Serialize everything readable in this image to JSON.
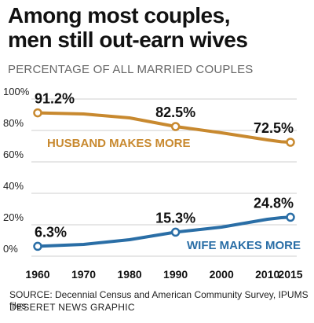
{
  "header": {
    "title_line1": "Among most couples,",
    "title_line2": "men still out-earn wives",
    "subtitle": "PERCENTAGE OF ALL MARRIED COUPLES"
  },
  "footer": {
    "source": "SOURCE: Decennial Census and American Community Survey, IPUMS files",
    "credit": "DESERET NEWS GRAPHIC"
  },
  "colors": {
    "husband": "#c8892f",
    "wife": "#2a6ea6",
    "grid": "#cfcfcf",
    "husband_label": "#c8892f",
    "wife_label": "#2a6ea6"
  },
  "chart_data": {
    "type": "line",
    "xlim": [
      1960,
      2015
    ],
    "ylim": [
      0,
      100
    ],
    "x_ticks": [
      1960,
      1970,
      1980,
      1990,
      2000,
      2010,
      2015
    ],
    "y_ticks": [
      {
        "value": 0,
        "label": "0%"
      },
      {
        "value": 20,
        "label": "20%"
      },
      {
        "value": 40,
        "label": "40%"
      },
      {
        "value": 60,
        "label": "60%"
      },
      {
        "value": 80,
        "label": "80%"
      },
      {
        "value": 100,
        "label": "100%"
      }
    ],
    "grid": true,
    "series": [
      {
        "name": "HUSBAND MAKES MORE",
        "color_key": "husband",
        "points": [
          {
            "x": 1960,
            "y": 91.2
          },
          {
            "x": 1970,
            "y": 90.5
          },
          {
            "x": 1980,
            "y": 88.0
          },
          {
            "x": 1990,
            "y": 82.5
          },
          {
            "x": 2000,
            "y": 78.5
          },
          {
            "x": 2010,
            "y": 74.0
          },
          {
            "x": 2013,
            "y": 72.8
          },
          {
            "x": 2015,
            "y": 72.5
          }
        ],
        "markers": [
          {
            "x": 1960,
            "y": 91.2,
            "label": "91.2%"
          },
          {
            "x": 1990,
            "y": 82.5,
            "label": "82.5%"
          },
          {
            "x": 2015,
            "y": 72.5,
            "label": "72.5%"
          }
        ]
      },
      {
        "name": "WIFE MAKES MORE",
        "color_key": "wife",
        "points": [
          {
            "x": 1960,
            "y": 6.3
          },
          {
            "x": 1970,
            "y": 7.5
          },
          {
            "x": 1980,
            "y": 10.5
          },
          {
            "x": 1990,
            "y": 15.3
          },
          {
            "x": 2000,
            "y": 18.5
          },
          {
            "x": 2010,
            "y": 23.5
          },
          {
            "x": 2013,
            "y": 24.5
          },
          {
            "x": 2015,
            "y": 24.8
          }
        ],
        "markers": [
          {
            "x": 1960,
            "y": 6.3,
            "label": "6.3%"
          },
          {
            "x": 1990,
            "y": 15.3,
            "label": "15.3%"
          },
          {
            "x": 2015,
            "y": 24.8,
            "label": "24.8%"
          }
        ]
      }
    ]
  }
}
